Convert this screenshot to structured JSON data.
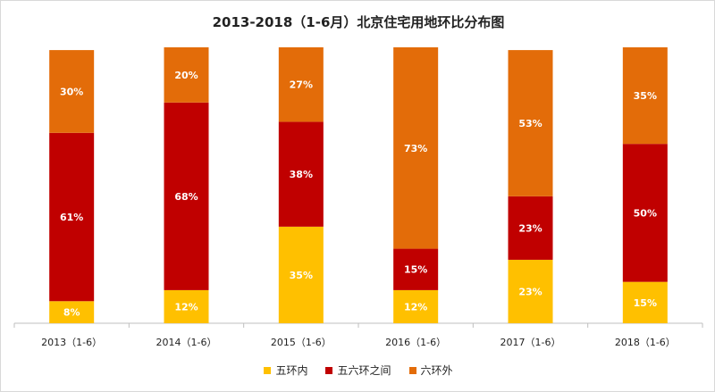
{
  "chart_data": {
    "type": "bar",
    "stacked": true,
    "title": "2013-2018（1-6月）北京住宅用地环比分布图",
    "categories": [
      "2013（1-6）",
      "2014（1-6）",
      "2015（1-6）",
      "2016（1-6）",
      "2017（1-6）",
      "2018（1-6）"
    ],
    "series": [
      {
        "name": "五环内",
        "color": "#FFC000",
        "values": [
          8,
          12,
          35,
          12,
          23,
          15
        ]
      },
      {
        "name": "五六环之间",
        "color": "#C00000",
        "values": [
          61,
          68,
          38,
          15,
          23,
          50
        ]
      },
      {
        "name": "六环外",
        "color": "#E36C09",
        "values": [
          30,
          20,
          27,
          73,
          53,
          35
        ]
      }
    ],
    "value_suffix": "%",
    "ylim": [
      0,
      100
    ],
    "legend_position": "bottom",
    "grid": false
  }
}
